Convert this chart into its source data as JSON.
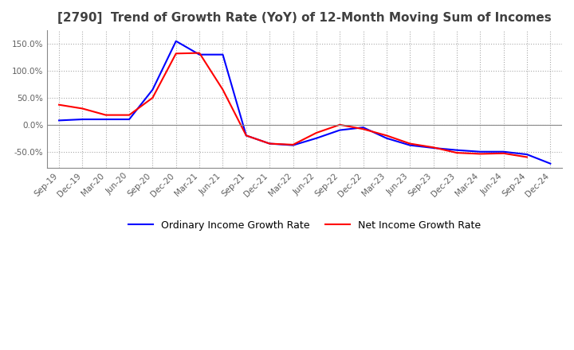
{
  "title": "[2790]  Trend of Growth Rate (YoY) of 12-Month Moving Sum of Incomes",
  "title_fontsize": 11,
  "ylim": [
    -80,
    175
  ],
  "yticks": [
    -50.0,
    0.0,
    50.0,
    100.0,
    150.0
  ],
  "background_color": "#ffffff",
  "grid_color": "#aaaaaa",
  "legend_labels": [
    "Ordinary Income Growth Rate",
    "Net Income Growth Rate"
  ],
  "line_colors": [
    "#0000ff",
    "#ff0000"
  ],
  "x_labels": [
    "Sep-19",
    "Dec-19",
    "Mar-20",
    "Jun-20",
    "Sep-20",
    "Dec-20",
    "Mar-21",
    "Jun-21",
    "Sep-21",
    "Dec-21",
    "Mar-22",
    "Jun-22",
    "Sep-22",
    "Dec-22",
    "Mar-23",
    "Jun-23",
    "Sep-23",
    "Dec-23",
    "Mar-24",
    "Jun-24",
    "Sep-24",
    "Dec-24"
  ],
  "ordinary_income": [
    8.0,
    10.0,
    10.0,
    10.0,
    65.0,
    155.0,
    130.0,
    130.0,
    -20.0,
    -35.0,
    -38.0,
    -25.0,
    -10.0,
    -5.0,
    -25.0,
    -38.0,
    -43.0,
    -47.0,
    -50.0,
    -50.0,
    -55.0,
    -72.0
  ],
  "net_income": [
    37.0,
    30.0,
    18.0,
    18.0,
    50.0,
    132.0,
    133.0,
    65.0,
    -20.0,
    -35.0,
    -37.0,
    -15.0,
    0.0,
    -8.0,
    -20.0,
    -35.0,
    -42.0,
    -52.0,
    -54.0,
    -53.0,
    -60.0,
    null
  ]
}
